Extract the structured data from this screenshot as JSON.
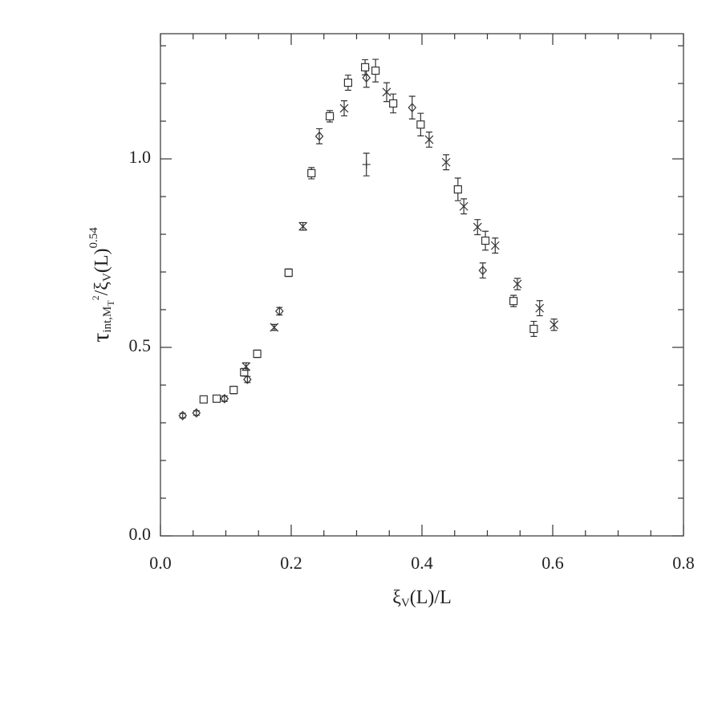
{
  "chart_data": {
    "type": "scatter",
    "xlabel": [
      "ξ",
      "V",
      "(L)/L"
    ],
    "xlabel_shift": [
      "base",
      "sub",
      "base"
    ],
    "ylabel": [
      "τ",
      "int,M",
      "T",
      "2",
      "/ξ",
      "V",
      "(L)",
      "0.54"
    ],
    "ylabel_shift": [
      "base",
      "sub",
      "subsub",
      "subsup",
      "base",
      "sub",
      "base",
      "sup"
    ],
    "xlim": [
      0,
      0.8
    ],
    "ylim": [
      0,
      1.332
    ],
    "xticks": [
      {
        "value": 0,
        "label": "0.0"
      },
      0.2,
      0.4,
      0.6,
      0.8
    ],
    "yticks": [
      {
        "value": 0,
        "label": "0.0"
      },
      0.5,
      {
        "value": 1,
        "label": "1.0"
      }
    ],
    "xminorticks": [
      0.05,
      0.1,
      0.15,
      0.25,
      0.3,
      0.35,
      0.45,
      0.5,
      0.55,
      0.65,
      0.7,
      0.75
    ],
    "yminorticks": [
      0.1,
      0.2,
      0.3,
      0.4,
      0.6,
      0.7,
      0.8,
      0.9,
      1.1,
      1.2,
      1.3
    ],
    "series": [
      {
        "marker": "diamond",
        "color": "#333333",
        "x": [
          0.034,
          0.055,
          0.098,
          0.133,
          0.182,
          0.243,
          0.315,
          0.385,
          0.493
        ],
        "values": [
          0.319,
          0.326,
          0.364,
          0.415,
          0.596,
          1.06,
          1.215,
          1.136,
          0.704
        ],
        "errors": [
          0.006,
          0.006,
          0.007,
          0.008,
          0.01,
          0.02,
          0.025,
          0.03,
          0.02
        ]
      },
      {
        "marker": "square",
        "color": "#333333",
        "x": [
          0.066,
          0.086,
          0.112,
          0.128,
          0.148,
          0.196,
          0.231,
          0.259,
          0.287,
          0.313,
          0.329,
          0.356,
          0.398,
          0.455,
          0.497,
          0.54,
          0.571
        ],
        "values": [
          0.362,
          0.364,
          0.387,
          0.434,
          0.483,
          0.698,
          0.962,
          1.113,
          1.202,
          1.243,
          1.234,
          1.147,
          1.091,
          0.919,
          0.783,
          0.623,
          0.549
        ],
        "errors": [
          0.008,
          0.008,
          0.01,
          0.01,
          0.01,
          0.01,
          0.015,
          0.015,
          0.02,
          0.02,
          0.03,
          0.025,
          0.03,
          0.03,
          0.025,
          0.015,
          0.02
        ]
      },
      {
        "marker": "cross",
        "color": "#333333",
        "x": [
          0.131,
          0.174,
          0.218,
          0.281,
          0.346,
          0.411,
          0.437,
          0.464,
          0.485,
          0.512,
          0.546,
          0.58,
          0.602
        ],
        "values": [
          0.449,
          0.553,
          0.821,
          1.134,
          1.177,
          1.051,
          0.991,
          0.874,
          0.819,
          0.77,
          0.668,
          0.604,
          0.56
        ],
        "errors": [
          0.01,
          0.008,
          0.01,
          0.02,
          0.025,
          0.02,
          0.02,
          0.02,
          0.02,
          0.02,
          0.015,
          0.02,
          0.015
        ]
      },
      {
        "marker": "plus",
        "color": "#333333",
        "x": [
          0.315
        ],
        "values": [
          0.985
        ],
        "errors": [
          0.03
        ]
      }
    ]
  }
}
